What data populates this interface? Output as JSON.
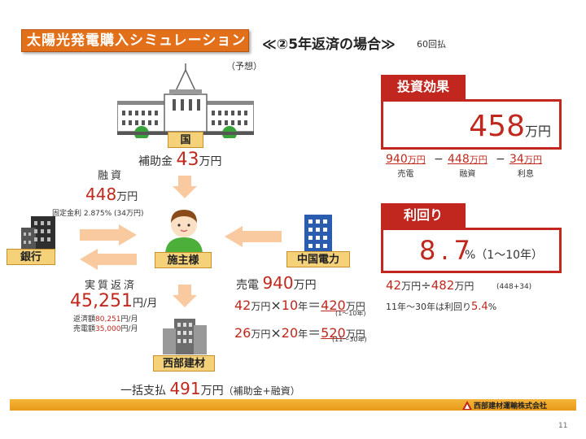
{
  "header": {
    "title": "太陽光発電購入シミュレーション",
    "case_title": "≪②5年返済の場合≫",
    "term": "60回払",
    "forecast": "（予想）"
  },
  "government": {
    "label": "国",
    "subsidy_prefix": "補助金",
    "subsidy_value": "43",
    "subsidy_unit": "万円"
  },
  "loan": {
    "label": "融資",
    "amount": "448",
    "unit": "万円",
    "note": "固定金利 2.875% (34万円)"
  },
  "bank": {
    "label": "銀行"
  },
  "owner": {
    "label": "施主様"
  },
  "power_company": {
    "label": "中国電力"
  },
  "repayment": {
    "label": "実質返済",
    "amount": "45,251",
    "unit": "円/月",
    "note1_prefix": "返済額",
    "note1_value": "80,251",
    "note1_unit": "円/月",
    "note2_prefix": "売電額",
    "note2_value": "35,000",
    "note2_unit": "円/月"
  },
  "selling": {
    "label": "売電",
    "value": "940",
    "unit": "万円",
    "calc1_a": "42",
    "calc1_u1": "万円",
    "calc1_op": "×",
    "calc1_b": "10",
    "calc1_u2": "年",
    "calc1_eq": "＝",
    "calc1_res": "420",
    "calc1_u3": "万円",
    "calc1_note": "(1～10年)",
    "calc2_a": "26",
    "calc2_u1": "万円",
    "calc2_op": "×",
    "calc2_b": "20",
    "calc2_u2": "年",
    "calc2_eq": "＝",
    "calc2_res": "520",
    "calc2_u3": "万円",
    "calc2_note": "(11～30年)"
  },
  "company": {
    "label": "西部建材",
    "lump_prefix": "一括支払",
    "lump_value": "491",
    "lump_unit": "万円",
    "lump_note": "（補助金+融資）"
  },
  "investment": {
    "tag": "投資効果",
    "value": "458",
    "unit": "万円",
    "items": [
      {
        "num": "940",
        "unit": "万円",
        "caption": "売電"
      },
      {
        "num": "448",
        "unit": "万円",
        "caption": "融資"
      },
      {
        "num": "34",
        "unit": "万円",
        "caption": "利息"
      }
    ],
    "op1": "−",
    "op2": "−"
  },
  "yield": {
    "tag": "利回り",
    "value": "8.7",
    "suffix": "%（1～10年）",
    "calc_a": "42",
    "calc_u1": "万円",
    "calc_op": "÷",
    "calc_b": "482",
    "calc_u2": "万円",
    "calc_note": "(448+34)",
    "longterm_prefix": "11年～30年は利回り",
    "longterm_value": "5.4",
    "longterm_unit": "%"
  },
  "footer": {
    "company": "西部建材運輸株式会社",
    "page": "11"
  },
  "colors": {
    "accent_red": "#c2271f",
    "title_orange": "#e2701a",
    "label_yellow": "#f5d27a",
    "arrow_peach": "#f9c9a0"
  }
}
